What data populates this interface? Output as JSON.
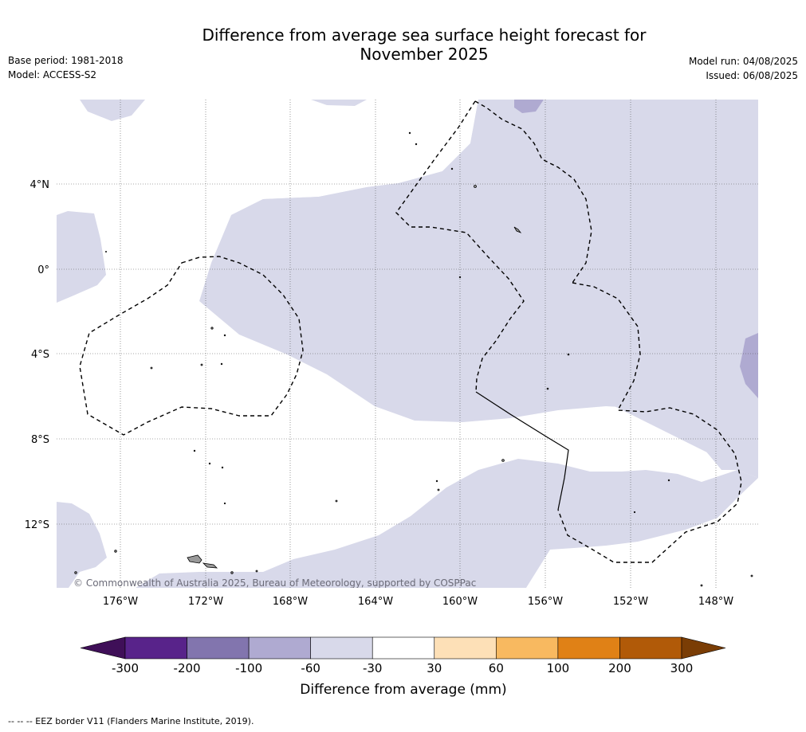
{
  "title_line1": "Difference from average sea surface height forecast for",
  "title_line2": "November 2025",
  "meta_left": {
    "base_period": "Base period: 1981-2018",
    "model": "Model: ACCESS-S2"
  },
  "meta_right": {
    "model_run": "Model run: 04/08/2025",
    "issued": "Issued: 06/08/2025"
  },
  "map": {
    "lat_labels": [
      "4°N",
      "0°",
      "4°S",
      "8°S",
      "12°S"
    ],
    "lon_labels": [
      "176°W",
      "172°W",
      "168°W",
      "164°W",
      "160°W",
      "156°W",
      "152°W",
      "148°W"
    ],
    "copyright": "© Commonwealth of Australia 2025, Bureau of Meteorology, supported by COSPPac"
  },
  "colorbar": {
    "label": "Difference from average (mm)",
    "ticks": [
      "-300",
      "-200",
      "-100",
      "-60",
      "-30",
      "30",
      "60",
      "100",
      "200",
      "300"
    ],
    "colors": [
      "#3f0f58",
      "#58238a",
      "#8275ae",
      "#afaad1",
      "#d8d9ea",
      "#ffffff",
      "#fde0b7",
      "#f8b960",
      "#e08116",
      "#b15a08",
      "#7a3d05"
    ]
  },
  "footer": "--  --  -- EEZ border V11 (Flanders Marine Institute, 2019)."
}
